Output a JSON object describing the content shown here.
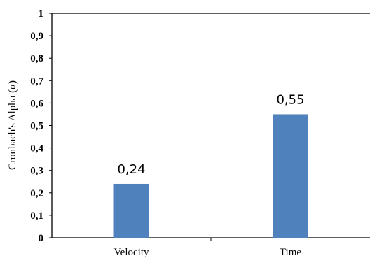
{
  "chart_data": {
    "type": "bar",
    "categories": [
      "Velocity",
      "Time"
    ],
    "values": [
      0.24,
      0.55
    ],
    "data_labels": [
      "0,24",
      "0,55"
    ],
    "ylabel": "Cronbach's Alpha (α)",
    "xlabel": "",
    "ylim": [
      0,
      1
    ],
    "yticks": [
      "0",
      "0,1",
      "0,2",
      "0,3",
      "0,4",
      "0,5",
      "0,6",
      "0,7",
      "0,8",
      "0,9",
      "1"
    ],
    "grid": false,
    "bar_color": "#4f81bd"
  }
}
